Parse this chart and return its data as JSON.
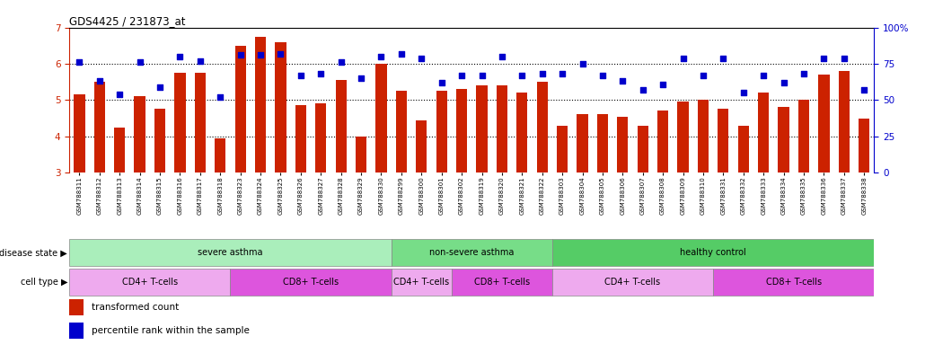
{
  "title": "GDS4425 / 231873_at",
  "samples": [
    "GSM788311",
    "GSM788312",
    "GSM788313",
    "GSM788314",
    "GSM788315",
    "GSM788316",
    "GSM788317",
    "GSM788318",
    "GSM788323",
    "GSM788324",
    "GSM788325",
    "GSM788326",
    "GSM788327",
    "GSM788328",
    "GSM788329",
    "GSM788330",
    "GSM788299",
    "GSM788300",
    "GSM788301",
    "GSM788302",
    "GSM788319",
    "GSM788320",
    "GSM788321",
    "GSM788322",
    "GSM788303",
    "GSM788304",
    "GSM788305",
    "GSM788306",
    "GSM788307",
    "GSM788308",
    "GSM788309",
    "GSM788310",
    "GSM788331",
    "GSM788332",
    "GSM788333",
    "GSM788334",
    "GSM788335",
    "GSM788336",
    "GSM788337",
    "GSM788338"
  ],
  "bar_values": [
    5.15,
    5.5,
    4.25,
    5.1,
    4.75,
    5.75,
    5.75,
    3.95,
    6.5,
    6.75,
    6.6,
    4.85,
    4.9,
    5.55,
    4.0,
    6.0,
    5.25,
    4.45,
    5.25,
    5.3,
    5.4,
    5.4,
    5.2,
    5.5,
    4.3,
    4.6,
    4.6,
    4.55,
    4.3,
    4.7,
    4.95,
    5.0,
    4.75,
    4.3,
    5.2,
    4.8,
    5.0,
    5.7,
    5.8,
    4.5
  ],
  "percentile_values": [
    76,
    63,
    54,
    76,
    59,
    80,
    77,
    52,
    81,
    81,
    82,
    67,
    68,
    76,
    65,
    80,
    82,
    79,
    62,
    67,
    67,
    80,
    67,
    68,
    68,
    75,
    67,
    63,
    57,
    61,
    79,
    67,
    79,
    55,
    67,
    62,
    68,
    79,
    79,
    57
  ],
  "ylim_left": [
    3,
    7
  ],
  "ylim_right": [
    0,
    100
  ],
  "yticks_left": [
    3,
    4,
    5,
    6,
    7
  ],
  "yticks_right": [
    0,
    25,
    50,
    75,
    100
  ],
  "bar_color": "#CC2200",
  "dot_color": "#0000CC",
  "disease_state_groups": [
    {
      "label": "severe asthma",
      "start": 0,
      "end": 15,
      "color": "#AAEEBB"
    },
    {
      "label": "non-severe asthma",
      "start": 16,
      "end": 23,
      "color": "#77DD88"
    },
    {
      "label": "healthy control",
      "start": 24,
      "end": 39,
      "color": "#55CC66"
    }
  ],
  "cell_type_groups": [
    {
      "label": "CD4+ T-cells",
      "start": 0,
      "end": 7,
      "color": "#EEAAEE"
    },
    {
      "label": "CD8+ T-cells",
      "start": 8,
      "end": 15,
      "color": "#DD55DD"
    },
    {
      "label": "CD4+ T-cells",
      "start": 16,
      "end": 18,
      "color": "#EEAAEE"
    },
    {
      "label": "CD8+ T-cells",
      "start": 19,
      "end": 23,
      "color": "#DD55DD"
    },
    {
      "label": "CD4+ T-cells",
      "start": 24,
      "end": 31,
      "color": "#EEAAEE"
    },
    {
      "label": "CD8+ T-cells",
      "start": 32,
      "end": 39,
      "color": "#DD55DD"
    }
  ],
  "disease_label": "disease state",
  "cell_label": "cell type",
  "legend_bar_label": "transformed count",
  "legend_dot_label": "percentile rank within the sample",
  "background_color": "#ffffff"
}
